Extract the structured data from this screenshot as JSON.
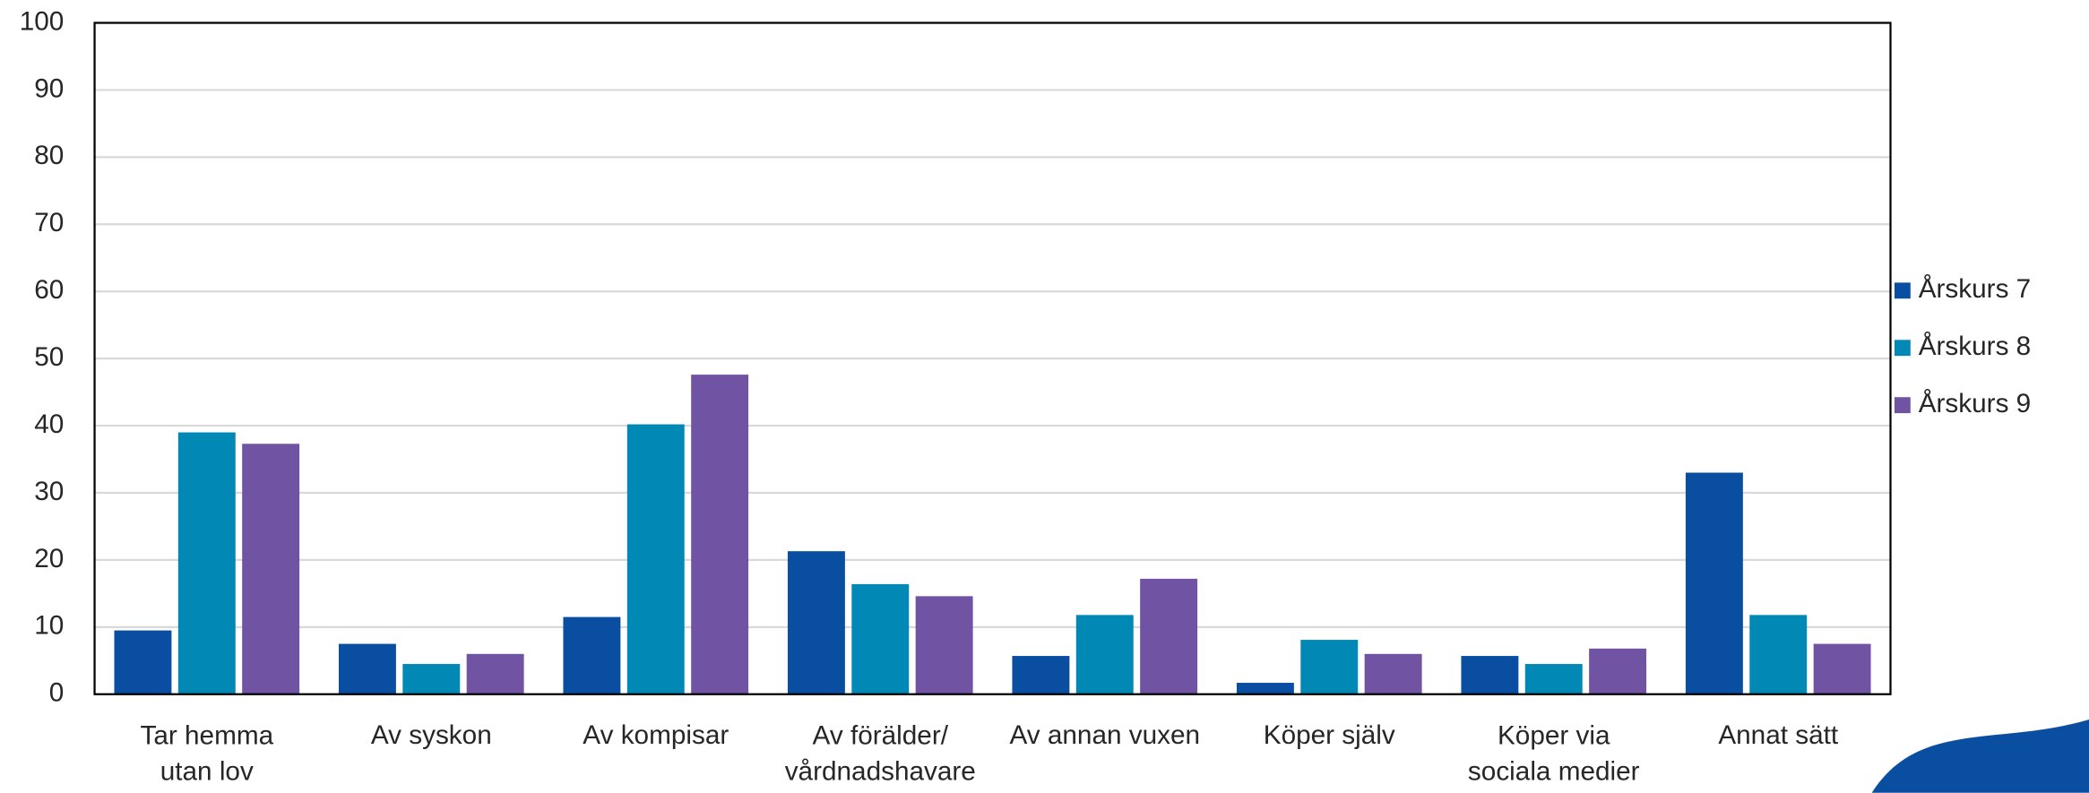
{
  "chart_data": {
    "type": "bar",
    "categories": [
      "Tar hemma\nutan lov",
      "Av syskon",
      "Av kompisar",
      "Av förälder/\nvårdnadshavare",
      "Av annan vuxen",
      "Köper själv",
      "Köper via\nsociala medier",
      "Annat sätt"
    ],
    "series": [
      {
        "name": "Årskurs 7",
        "color": "#0a4ea2",
        "values": [
          9.5,
          7.5,
          11.5,
          21.3,
          5.7,
          1.7,
          5.7,
          33
        ]
      },
      {
        "name": "Årskurs 8",
        "color": "#0288b5",
        "values": [
          39,
          4.5,
          40.2,
          16.4,
          11.8,
          8.1,
          4.5,
          11.8
        ]
      },
      {
        "name": "Årskurs 9",
        "color": "#7053a2",
        "values": [
          37.3,
          6,
          47.6,
          14.6,
          17.2,
          6,
          6.8,
          7.5
        ]
      }
    ],
    "ylim": [
      0,
      100
    ],
    "yticks": [
      0,
      10,
      20,
      30,
      40,
      50,
      60,
      70,
      80,
      90,
      100
    ],
    "grid": true,
    "legend": "right"
  }
}
